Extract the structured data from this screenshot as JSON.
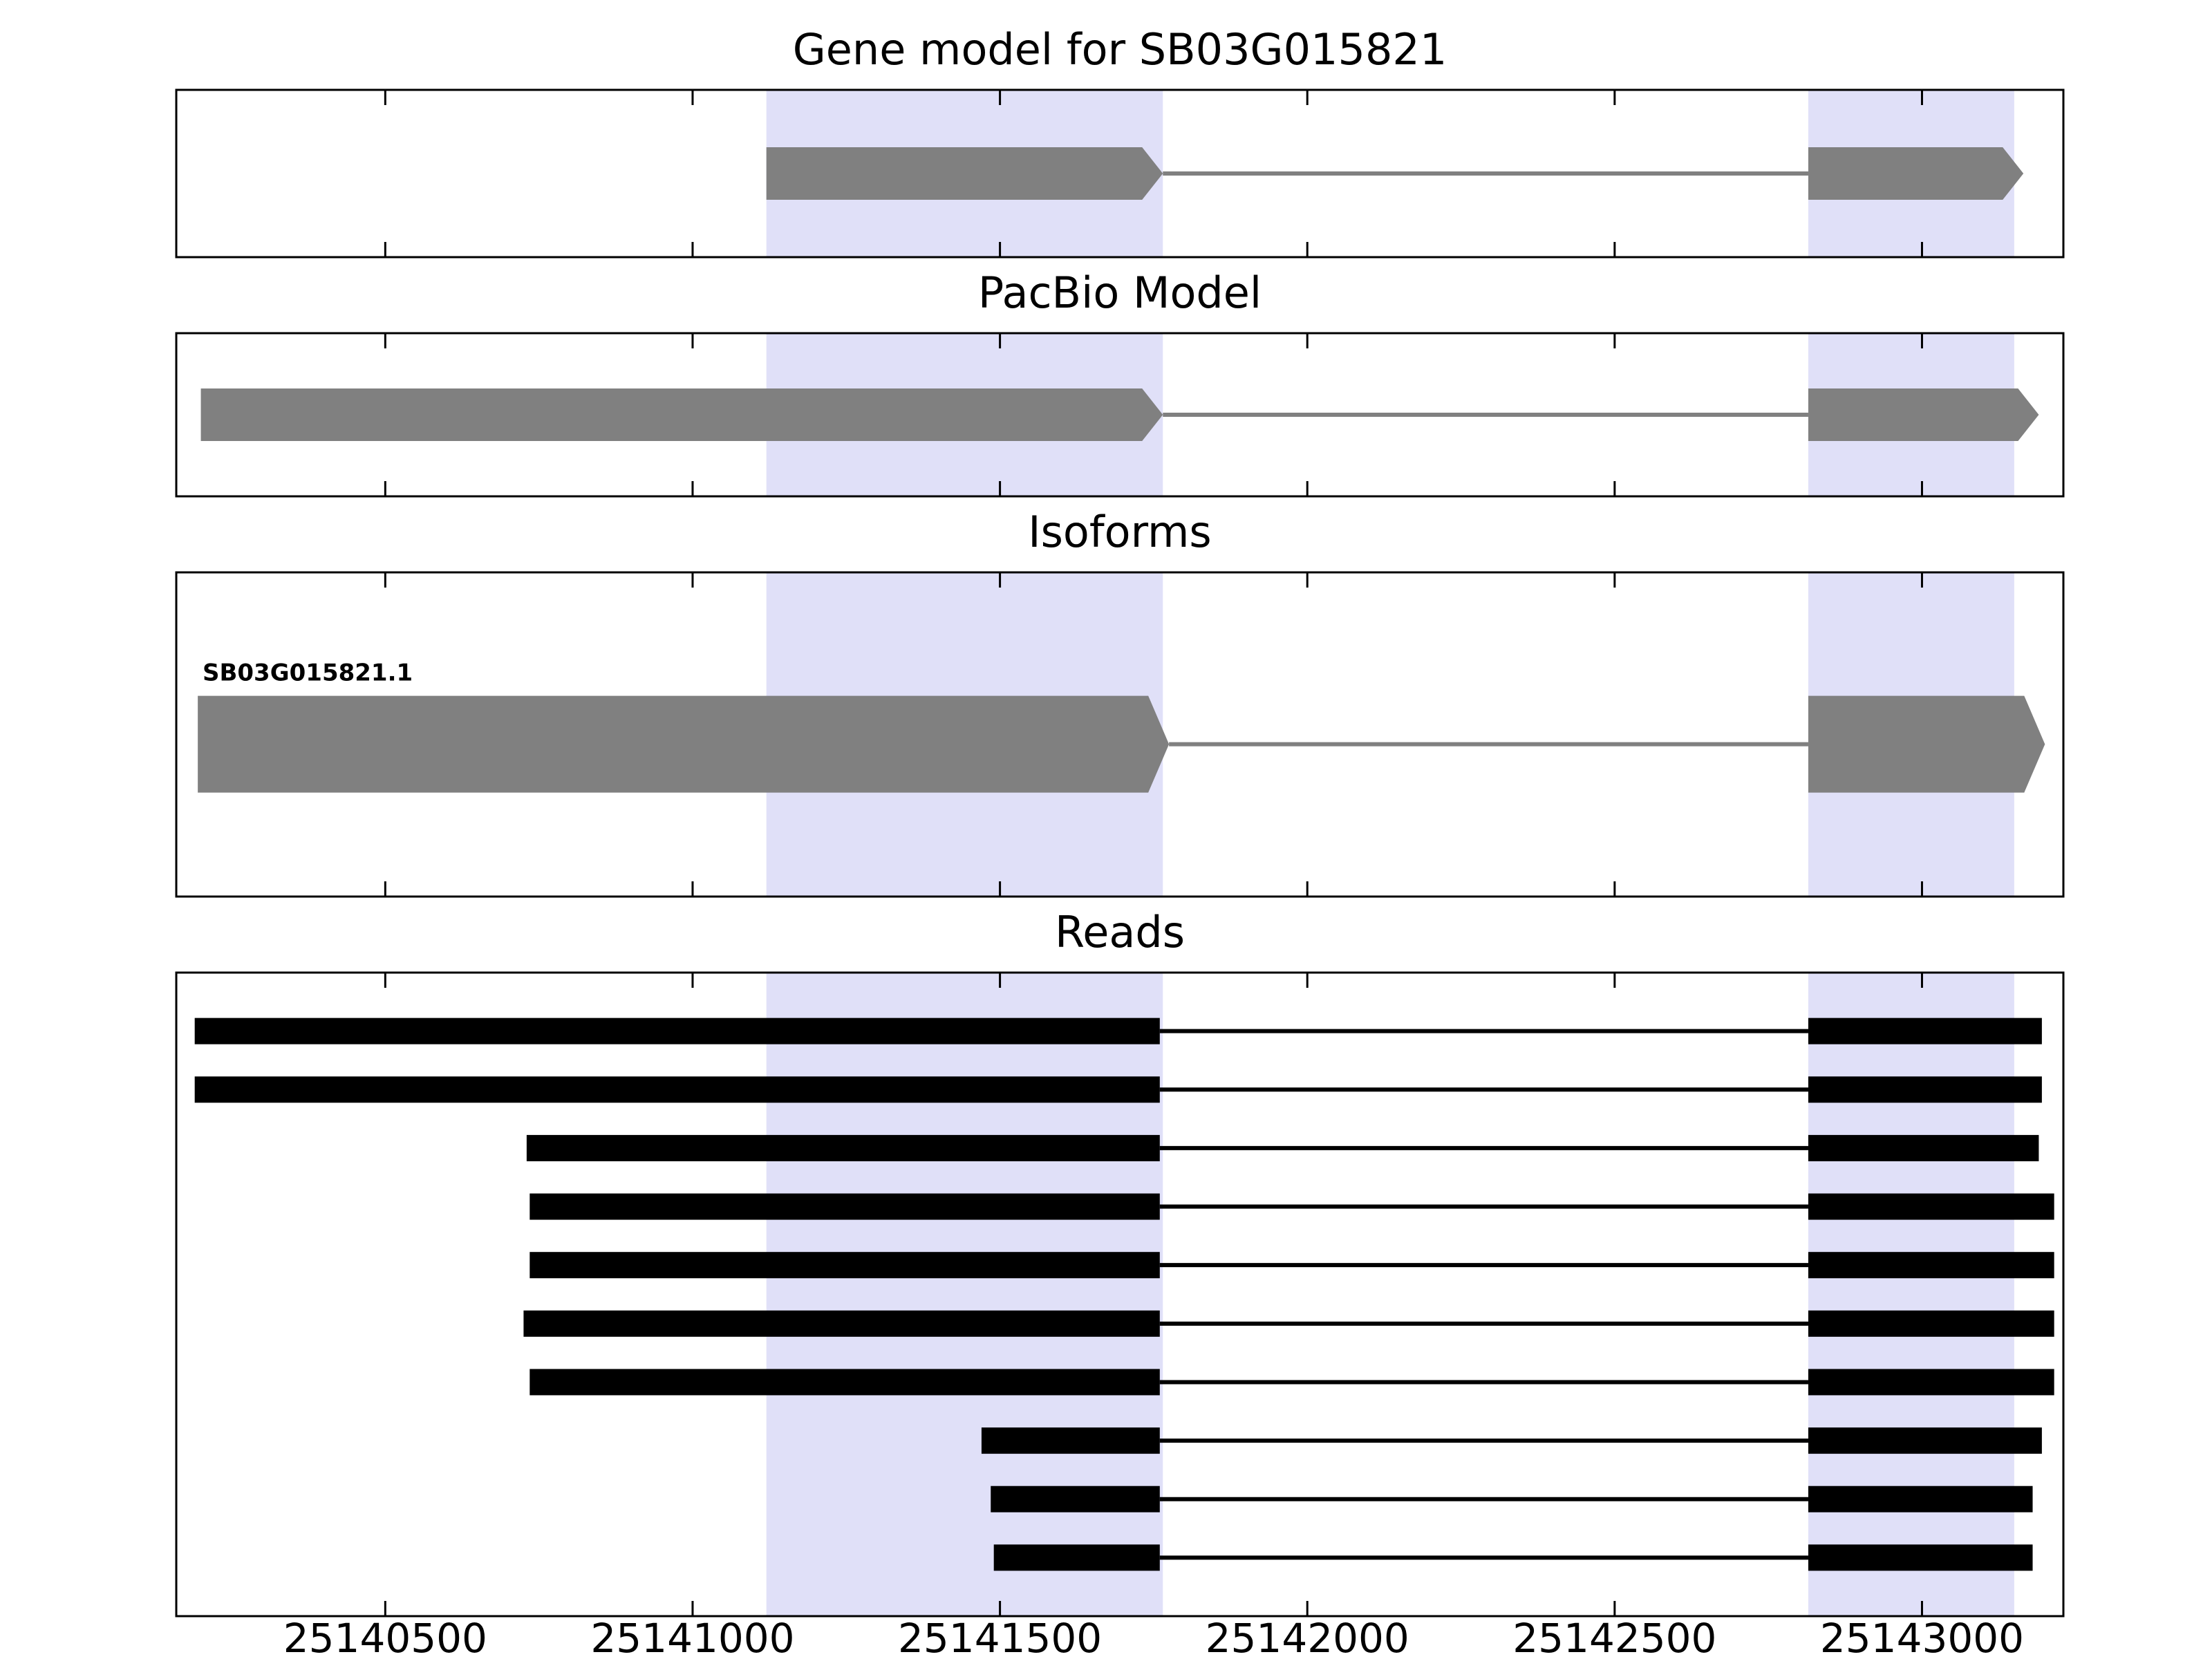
{
  "figure": {
    "background": "#ffffff",
    "band_color": "#e0e0f8",
    "model_color": "#808080",
    "read_color": "#000000",
    "border_color": "#000000"
  },
  "chart_data": {
    "type": "gene-model-tracks",
    "x_axis": {
      "min": 25140160,
      "max": 25143230,
      "ticks": [
        25140500,
        25141000,
        25141500,
        25142000,
        25142500,
        25143000
      ],
      "tick_labels": [
        "25140500",
        "25141000",
        "25141500",
        "25142000",
        "25142500",
        "25143000"
      ]
    },
    "highlight_regions": [
      {
        "start": 25141120,
        "end": 25141765
      },
      {
        "start": 25142815,
        "end": 25143150
      }
    ],
    "panels": [
      {
        "title": "Gene model for SB03G015821",
        "kind": "model",
        "tracks": [
          {
            "exons": [
              [
                25141120,
                25141765
              ],
              [
                25142815,
                25143165
              ]
            ]
          }
        ]
      },
      {
        "title": "PacBio Model",
        "kind": "model",
        "tracks": [
          {
            "exons": [
              [
                25140200,
                25141765
              ],
              [
                25142815,
                25143190
              ]
            ]
          }
        ]
      },
      {
        "title": "Isoforms",
        "kind": "isoform",
        "tracks": [
          {
            "label": "SB03G015821.1",
            "exons": [
              [
                25140195,
                25141775
              ],
              [
                25142815,
                25143200
              ]
            ]
          }
        ]
      },
      {
        "title": "Reads",
        "kind": "reads",
        "tracks": [
          {
            "exons": [
              [
                25140190,
                25141760
              ],
              [
                25142815,
                25143195
              ]
            ]
          },
          {
            "exons": [
              [
                25140190,
                25141760
              ],
              [
                25142815,
                25143195
              ]
            ]
          },
          {
            "exons": [
              [
                25140730,
                25141760
              ],
              [
                25142815,
                25143190
              ]
            ]
          },
          {
            "exons": [
              [
                25140735,
                25141760
              ],
              [
                25142815,
                25143215
              ]
            ]
          },
          {
            "exons": [
              [
                25140735,
                25141760
              ],
              [
                25142815,
                25143215
              ]
            ]
          },
          {
            "exons": [
              [
                25140725,
                25141760
              ],
              [
                25142815,
                25143215
              ]
            ]
          },
          {
            "exons": [
              [
                25140735,
                25141760
              ],
              [
                25142815,
                25143215
              ]
            ]
          },
          {
            "exons": [
              [
                25141470,
                25141760
              ],
              [
                25142815,
                25143195
              ]
            ]
          },
          {
            "exons": [
              [
                25141485,
                25141760
              ],
              [
                25142815,
                25143180
              ]
            ]
          },
          {
            "exons": [
              [
                25141490,
                25141760
              ],
              [
                25142815,
                25143180
              ]
            ]
          }
        ]
      }
    ]
  }
}
